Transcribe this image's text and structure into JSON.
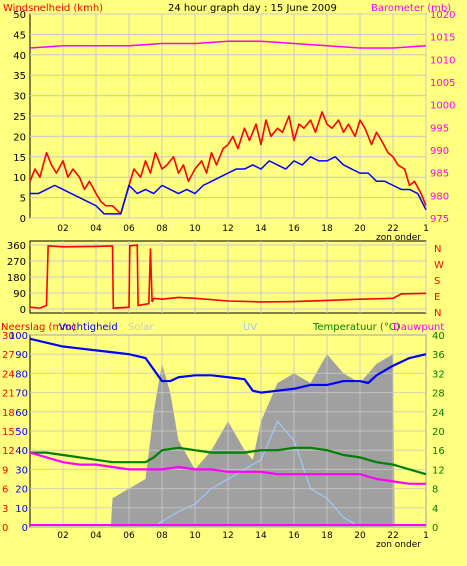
{
  "colors": {
    "background": "#ffff80",
    "wind": "#ff0000",
    "wind_avg": "#0000ff",
    "barometer": "#ff00ff",
    "direction": "#ff0000",
    "rain": "#ff00ff",
    "humidity": "#0000ff",
    "solar": "#a0a0a0",
    "uv": "#a0c8ff",
    "temperature": "#008000",
    "dewpoint": "#ff00ff",
    "grid": "#c8c8c8"
  },
  "chart_data": [
    {
      "type": "line",
      "title": "24 hour graph day : 15 June 2009",
      "left_axis_label": "Windsnelheid (kmh)",
      "right_axis_label": "Barometer (mb)",
      "x_ticks": [
        "02",
        "04",
        "06",
        "08",
        "10",
        "12",
        "14",
        "16",
        "18",
        "20",
        "22",
        "1"
      ],
      "x_note": "zon onder",
      "ylim_left": [
        0,
        50
      ],
      "yticks_left": [
        "0",
        "5",
        "10",
        "15",
        "20",
        "25",
        "30",
        "35",
        "40",
        "45",
        "50"
      ],
      "ylim_right": [
        975,
        1020
      ],
      "yticks_right": [
        "975",
        "980",
        "985",
        "990",
        "995",
        "1000",
        "1005",
        "1010",
        "1015",
        "1020"
      ],
      "series": [
        {
          "axis": "left",
          "color": "#ff0000",
          "x": [
            0.0,
            0.3,
            0.6,
            1.0,
            1.3,
            1.6,
            2.0,
            2.3,
            2.6,
            3.0,
            3.3,
            3.6,
            4.0,
            4.3,
            4.6,
            5.0,
            5.5,
            6.0,
            6.3,
            6.7,
            7.0,
            7.3,
            7.6,
            8.0,
            8.3,
            8.7,
            9.0,
            9.3,
            9.6,
            10.0,
            10.4,
            10.7,
            11.0,
            11.3,
            11.7,
            12.0,
            12.3,
            12.6,
            13.0,
            13.3,
            13.7,
            14.0,
            14.3,
            14.6,
            15.0,
            15.3,
            15.7,
            16.0,
            16.3,
            16.6,
            17.0,
            17.3,
            17.7,
            18.0,
            18.3,
            18.7,
            19.0,
            19.3,
            19.7,
            20.0,
            20.3,
            20.7,
            21.0,
            21.3,
            21.7,
            22.0,
            22.3,
            22.7,
            23.0,
            23.3,
            23.7,
            24.0
          ],
          "y": [
            9,
            12,
            10,
            16,
            13,
            11,
            14,
            10,
            12,
            10,
            7,
            9,
            6,
            4,
            3,
            3,
            1,
            8,
            12,
            10,
            14,
            11,
            16,
            12,
            13,
            15,
            11,
            13,
            9,
            12,
            14,
            11,
            16,
            13,
            17,
            18,
            20,
            17,
            22,
            19,
            23,
            18,
            24,
            20,
            22,
            21,
            25,
            19,
            23,
            22,
            24,
            21,
            26,
            23,
            22,
            24,
            21,
            23,
            20,
            24,
            22,
            18,
            21,
            19,
            16,
            15,
            13,
            12,
            8,
            9,
            6,
            3
          ]
        },
        {
          "axis": "left",
          "color": "#0000ff",
          "x": [
            0.0,
            0.5,
            1.0,
            1.5,
            2.0,
            2.5,
            3.0,
            3.5,
            4.0,
            4.5,
            5.0,
            5.5,
            6.0,
            6.5,
            7.0,
            7.5,
            8.0,
            8.5,
            9.0,
            9.5,
            10.0,
            10.5,
            11.0,
            11.5,
            12.0,
            12.5,
            13.0,
            13.5,
            14.0,
            14.5,
            15.0,
            15.5,
            16.0,
            16.5,
            17.0,
            17.5,
            18.0,
            18.5,
            19.0,
            19.5,
            20.0,
            20.5,
            21.0,
            21.5,
            22.0,
            22.5,
            23.0,
            23.5,
            24.0
          ],
          "y": [
            6,
            6,
            7,
            8,
            7,
            6,
            5,
            4,
            3,
            1,
            1,
            1,
            8,
            6,
            7,
            6,
            8,
            7,
            6,
            7,
            6,
            8,
            9,
            10,
            11,
            12,
            12,
            13,
            12,
            14,
            13,
            12,
            14,
            13,
            15,
            14,
            14,
            15,
            13,
            12,
            11,
            11,
            9,
            9,
            8,
            7,
            7,
            6,
            2
          ]
        },
        {
          "axis": "right",
          "color": "#ff00ff",
          "x": [
            0,
            2,
            4,
            6,
            8,
            10,
            12,
            14,
            16,
            18,
            20,
            22,
            24
          ],
          "y": [
            1012.5,
            1013.0,
            1013.0,
            1013.0,
            1013.5,
            1013.5,
            1014.0,
            1014.0,
            1013.5,
            1013.0,
            1012.5,
            1012.5,
            1013.0
          ]
        }
      ]
    },
    {
      "type": "line",
      "x_ticks": [],
      "ylim": [
        0,
        360
      ],
      "yticks": [
        "0",
        "90",
        "180",
        "270",
        "360"
      ],
      "direction_labels": [
        "N",
        "W",
        "S",
        "E",
        "N"
      ],
      "series": [
        {
          "color": "#ff0000",
          "x": [
            0.0,
            0.6,
            1.0,
            1.1,
            2.0,
            4.0,
            5.0,
            5.05,
            6.0,
            6.05,
            6.5,
            6.55,
            7.2,
            7.3,
            7.4,
            7.5,
            8.0,
            9.0,
            10.0,
            12.0,
            14.0,
            16.0,
            18.0,
            20.0,
            22.0,
            22.5,
            24.0
          ],
          "y": [
            10,
            5,
            20,
            355,
            350,
            352,
            355,
            5,
            10,
            355,
            360,
            20,
            30,
            340,
            40,
            60,
            55,
            65,
            60,
            45,
            40,
            42,
            48,
            55,
            60,
            85,
            88
          ]
        }
      ]
    },
    {
      "type": "line",
      "left_axis_labels": [
        "Neerslag (mm)",
        "Vochtigheid",
        "Solar",
        "UV"
      ],
      "right_axis_labels": [
        "Temperatuur (°C)",
        "Dauwpunt"
      ],
      "x_ticks": [
        "02",
        "04",
        "06",
        "08",
        "10",
        "12",
        "14",
        "16",
        "18",
        "20",
        "22",
        "1"
      ],
      "x_note": "zon onder",
      "ylim_rain": [
        0,
        30
      ],
      "yticks_rain": [
        "0",
        "3",
        "6",
        "9",
        "12",
        "15",
        "18",
        "21",
        "24",
        "27",
        "30"
      ],
      "ylim_humidity": [
        0,
        100
      ],
      "yticks_humidity": [
        "0",
        "10",
        "20",
        "30",
        "40",
        "50",
        "60",
        "70",
        "80",
        "90",
        "100"
      ],
      "ylim_temp": [
        0,
        40
      ],
      "yticks_temp": [
        "0",
        "4",
        "8",
        "12",
        "16",
        "20",
        "24",
        "28",
        "32",
        "36",
        "40"
      ],
      "series": [
        {
          "name": "Vochtigheid",
          "axis": "humidity",
          "color": "#0000ff",
          "x": [
            0,
            1,
            2,
            3,
            4,
            5,
            6,
            7,
            7.5,
            8,
            8.5,
            9,
            10,
            11,
            12,
            13,
            13.5,
            14,
            15,
            16,
            17,
            18,
            19,
            20,
            20.5,
            21,
            22,
            23,
            24
          ],
          "y": [
            98,
            96,
            94,
            93,
            92,
            91,
            90,
            88,
            82,
            76,
            76,
            78,
            79,
            79,
            78,
            77,
            71,
            70,
            71,
            72,
            74,
            74,
            76,
            76,
            75,
            79,
            84,
            88,
            90
          ]
        },
        {
          "name": "Temperatuur",
          "axis": "temp",
          "color": "#008000",
          "x": [
            0,
            1,
            2,
            3,
            4,
            5,
            6,
            7,
            7.5,
            8,
            9,
            10,
            11,
            12,
            13,
            14,
            15,
            16,
            17,
            18,
            19,
            20,
            21,
            22,
            23,
            24
          ],
          "y": [
            15.5,
            15.5,
            15.0,
            14.5,
            14.0,
            13.5,
            13.5,
            13.5,
            14.5,
            16.0,
            16.5,
            16.0,
            15.5,
            15.5,
            15.5,
            16.0,
            16.0,
            16.5,
            16.5,
            16.0,
            15.0,
            14.5,
            13.5,
            13.0,
            12.0,
            11.0
          ]
        },
        {
          "name": "Dauwpunt",
          "axis": "temp",
          "color": "#ff00ff",
          "x": [
            0,
            1,
            2,
            3,
            4,
            5,
            6,
            7,
            8,
            9,
            10,
            11,
            12,
            13,
            14,
            15,
            16,
            17,
            18,
            19,
            20,
            21,
            22,
            23,
            24
          ],
          "y": [
            15.5,
            14.5,
            13.5,
            13.0,
            13.0,
            12.5,
            12.0,
            12.0,
            12.0,
            12.5,
            12.0,
            12.0,
            11.5,
            11.5,
            11.5,
            11.0,
            11.0,
            11.0,
            11.0,
            11.0,
            11.0,
            10.0,
            9.5,
            9.0,
            9.0
          ]
        },
        {
          "name": "Solar",
          "axis": "humidity",
          "color": "#a0a0a0",
          "x": [
            0,
            4.9,
            5.0,
            6,
            7,
            7.5,
            8,
            8.5,
            9,
            10,
            11,
            12,
            13,
            13.5,
            14,
            15,
            16,
            17,
            18,
            19,
            20,
            21,
            22,
            22.1
          ],
          "y": [
            0,
            0,
            15,
            20,
            25,
            60,
            85,
            70,
            45,
            30,
            40,
            55,
            40,
            35,
            55,
            75,
            80,
            75,
            90,
            80,
            75,
            85,
            90,
            0
          ]
        },
        {
          "name": "UV",
          "axis": "humidity",
          "color": "#a0c8ff",
          "x": [
            7.5,
            8,
            9,
            10,
            11,
            12,
            13,
            14,
            15,
            16,
            17,
            18,
            19,
            20
          ],
          "y": [
            0,
            3,
            8,
            12,
            20,
            25,
            30,
            35,
            55,
            45,
            20,
            15,
            5,
            0
          ]
        }
      ]
    }
  ]
}
